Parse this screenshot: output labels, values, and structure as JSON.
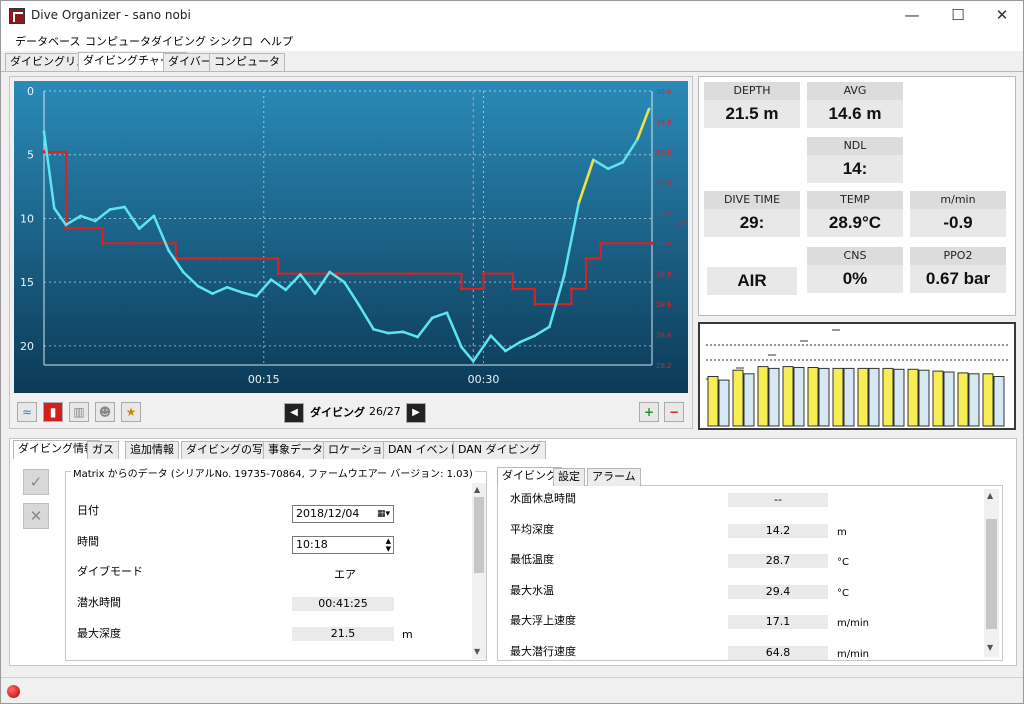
{
  "window": {
    "title": "Dive Organizer - sano nobi",
    "min": "—",
    "max": "☐",
    "close": "✕"
  },
  "menu": [
    "データベース",
    "コンピュータ",
    "ダイビング",
    "シンクロ",
    "ヘルプ"
  ],
  "main_tabs": [
    "ダイビングリスト",
    "ダイビングチャート",
    "ダイバー",
    "コンピュータ"
  ],
  "chart": {
    "y_ticks": [
      "0",
      "5",
      "10",
      "15",
      "20"
    ],
    "x_ticks": [
      "00:15",
      "00:30"
    ],
    "temp_ticks": [
      "30.0",
      "29.8",
      "29.6",
      "29.4",
      "29.2",
      "29.0",
      "28.8",
      "28.6",
      "28.4",
      "28.2"
    ],
    "temp_axis_label": "C°",
    "colors": {
      "background": "#1a5f82",
      "depth": "#5ee6f0",
      "temp": "#e02020",
      "ascent_warn": "#f0e040"
    }
  },
  "chart_data": {
    "type": "line",
    "x_unit": "min",
    "xlim": [
      0,
      41.5
    ],
    "ylim": [
      0,
      21.5
    ],
    "y_reversed": true,
    "y2lim": [
      28.2,
      30.0
    ],
    "series": [
      {
        "axis": "depth",
        "x": [
          0,
          0.7,
          1.5,
          2.5,
          3.5,
          4.5,
          5.5,
          6.5,
          7.5,
          8.5,
          9.5,
          10.5,
          11.5,
          12.5,
          13.5,
          14.5,
          15.5,
          16.5,
          17.5,
          18.5,
          19.5,
          20.5,
          21.5,
          22.5,
          23.5,
          24.5,
          25.5,
          26.5,
          27.5,
          28.5,
          29.3,
          30.5,
          31.5,
          32.5,
          33.5,
          34.5,
          35.5,
          36.5,
          37.5,
          38.5,
          39.5,
          40.5,
          41.3
        ],
        "values": [
          3.2,
          9.2,
          10.5,
          9.8,
          10.2,
          9.3,
          9.1,
          10.8,
          9.8,
          12.5,
          14.2,
          15.3,
          15.9,
          15.4,
          15.8,
          16.1,
          14.8,
          15.6,
          14.4,
          15.9,
          14.2,
          15.0,
          16.8,
          18.7,
          19.0,
          18.9,
          19.3,
          17.8,
          17.4,
          20.1,
          21.2,
          19.2,
          20.4,
          19.7,
          19.2,
          18.5,
          14.5,
          8.8,
          5.4,
          6.1,
          5.6,
          3.8,
          1.4
        ]
      },
      {
        "axis": "temp",
        "x": [
          0,
          1.5,
          2.5,
          4.0,
          6.0,
          9.0,
          12.0,
          16.0,
          20.0,
          25.0,
          28.5,
          30.0,
          32.0,
          33.5,
          36.0,
          37.0,
          38.0,
          41.5
        ],
        "values": [
          29.6,
          29.1,
          29.1,
          29.0,
          29.0,
          28.9,
          28.9,
          28.8,
          28.8,
          28.8,
          28.7,
          28.8,
          28.7,
          28.6,
          28.7,
          28.9,
          29.0,
          29.0
        ]
      }
    ]
  },
  "stats": {
    "depth": {
      "label": "DEPTH",
      "value": "21.5 m"
    },
    "avg": {
      "label": "AVG",
      "value": "14.6 m"
    },
    "ndl": {
      "label": "NDL",
      "value": "14:"
    },
    "dive_time": {
      "label": "DIVE TIME",
      "value": "29:"
    },
    "temp": {
      "label": "TEMP",
      "value": "28.9°C"
    },
    "rate": {
      "label": "m/min",
      "value": "-0.9"
    },
    "gas": {
      "value": "AIR"
    },
    "cns": {
      "label": "CNS",
      "value": "0%"
    },
    "ppo2": {
      "label": "PPO2",
      "value": "0.67 bar"
    }
  },
  "gas_chart": {
    "bars_yellow": [
      0.55,
      0.62,
      0.66,
      0.66,
      0.65,
      0.64,
      0.64,
      0.64,
      0.63,
      0.61,
      0.59,
      0.58
    ],
    "bars_blue": [
      0.51,
      0.58,
      0.64,
      0.65,
      0.64,
      0.64,
      0.64,
      0.63,
      0.62,
      0.6,
      0.58,
      0.55
    ]
  },
  "nav": {
    "label": "ダイビング",
    "count": "26/27"
  },
  "info_tabs": [
    "ダイビング情報",
    "ガス",
    "追加情報",
    "ダイビングの写真",
    "事象データ",
    "ロケーション",
    "DAN イベント",
    "DAN ダイビング"
  ],
  "info": {
    "source": "Matrix からのデータ (シリアルNo. 19735-70864, ファームウエアー バージョン: 1.03)",
    "date_label": "日付",
    "date_value": "2018/12/04",
    "time_label": "時間",
    "time_value": "10:18",
    "mode_label": "ダイブモード",
    "mode_value": "エア",
    "duration_label": "潜水時間",
    "duration_value": "00:41:25",
    "maxdepth_label": "最大深度",
    "maxdepth_value": "21.5",
    "maxdepth_unit": "m"
  },
  "sub_tabs": [
    "ダイビング",
    "設定",
    "アラーム"
  ],
  "detail_rows": [
    {
      "label": "水面休息時間",
      "value": "--",
      "unit": ""
    },
    {
      "label": "平均深度",
      "value": "14.2",
      "unit": "m"
    },
    {
      "label": "最低温度",
      "value": "28.7",
      "unit": "°C"
    },
    {
      "label": "最大水温",
      "value": "29.4",
      "unit": "°C"
    },
    {
      "label": "最大浮上速度",
      "value": "17.1",
      "unit": "m/min"
    },
    {
      "label": "最大潜行速度",
      "value": "64.8",
      "unit": "m/min"
    }
  ]
}
